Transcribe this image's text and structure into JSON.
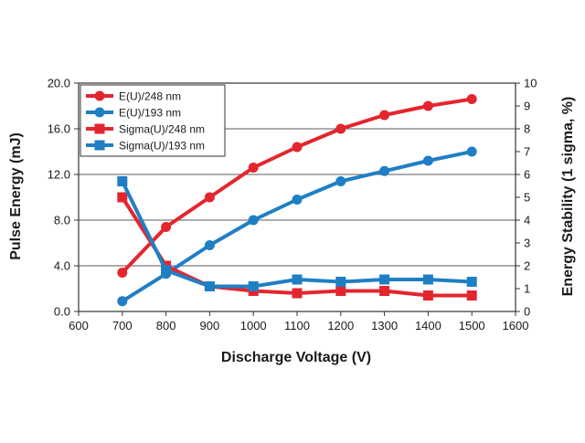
{
  "chart_data": {
    "type": "line",
    "title": "",
    "xlabel": "Discharge Voltage (V)",
    "ylabel_left": "Pulse Energy (mJ)",
    "ylabel_right": "Energy Stability (1 sigma, %)",
    "xlim": [
      600,
      1600
    ],
    "ylim_left": [
      0,
      20
    ],
    "ylim_right": [
      0,
      10
    ],
    "x_ticks": [
      "600",
      "700",
      "800",
      "900",
      "1000",
      "1100",
      "1200",
      "1300",
      "1400",
      "1500",
      "1600"
    ],
    "y_left_ticks": [
      "0.0",
      "4.0",
      "8.0",
      "12.0",
      "16.0",
      "20.0"
    ],
    "y_right_ticks": [
      "0",
      "1",
      "2",
      "3",
      "4",
      "5",
      "6",
      "7",
      "8",
      "9",
      "10"
    ],
    "grid": true,
    "legend_position": "top-left",
    "x": [
      700,
      800,
      900,
      1000,
      1100,
      1200,
      1300,
      1400,
      1500
    ],
    "series": [
      {
        "name": "E(U)/248 nm",
        "axis": "left",
        "marker": "circle",
        "color": "#e3262e",
        "values": [
          3.4,
          7.4,
          10.0,
          12.6,
          14.4,
          16.0,
          17.2,
          18.0,
          18.6
        ]
      },
      {
        "name": "E(U)/193 nm",
        "axis": "left",
        "marker": "circle",
        "color": "#1f7fc4",
        "values": [
          0.9,
          3.3,
          5.8,
          8.0,
          9.8,
          11.4,
          12.3,
          13.2,
          14.0
        ]
      },
      {
        "name": "Sigma(U)/248 nm",
        "axis": "right",
        "marker": "square",
        "color": "#e3262e",
        "values": [
          5.0,
          2.0,
          1.1,
          0.9,
          0.8,
          0.9,
          0.9,
          0.7,
          0.7
        ]
      },
      {
        "name": "Sigma(U)/193 nm",
        "axis": "right",
        "marker": "square",
        "color": "#1f7fc4",
        "values": [
          5.7,
          1.8,
          1.1,
          1.1,
          1.4,
          1.3,
          1.4,
          1.4,
          1.3
        ]
      }
    ]
  }
}
